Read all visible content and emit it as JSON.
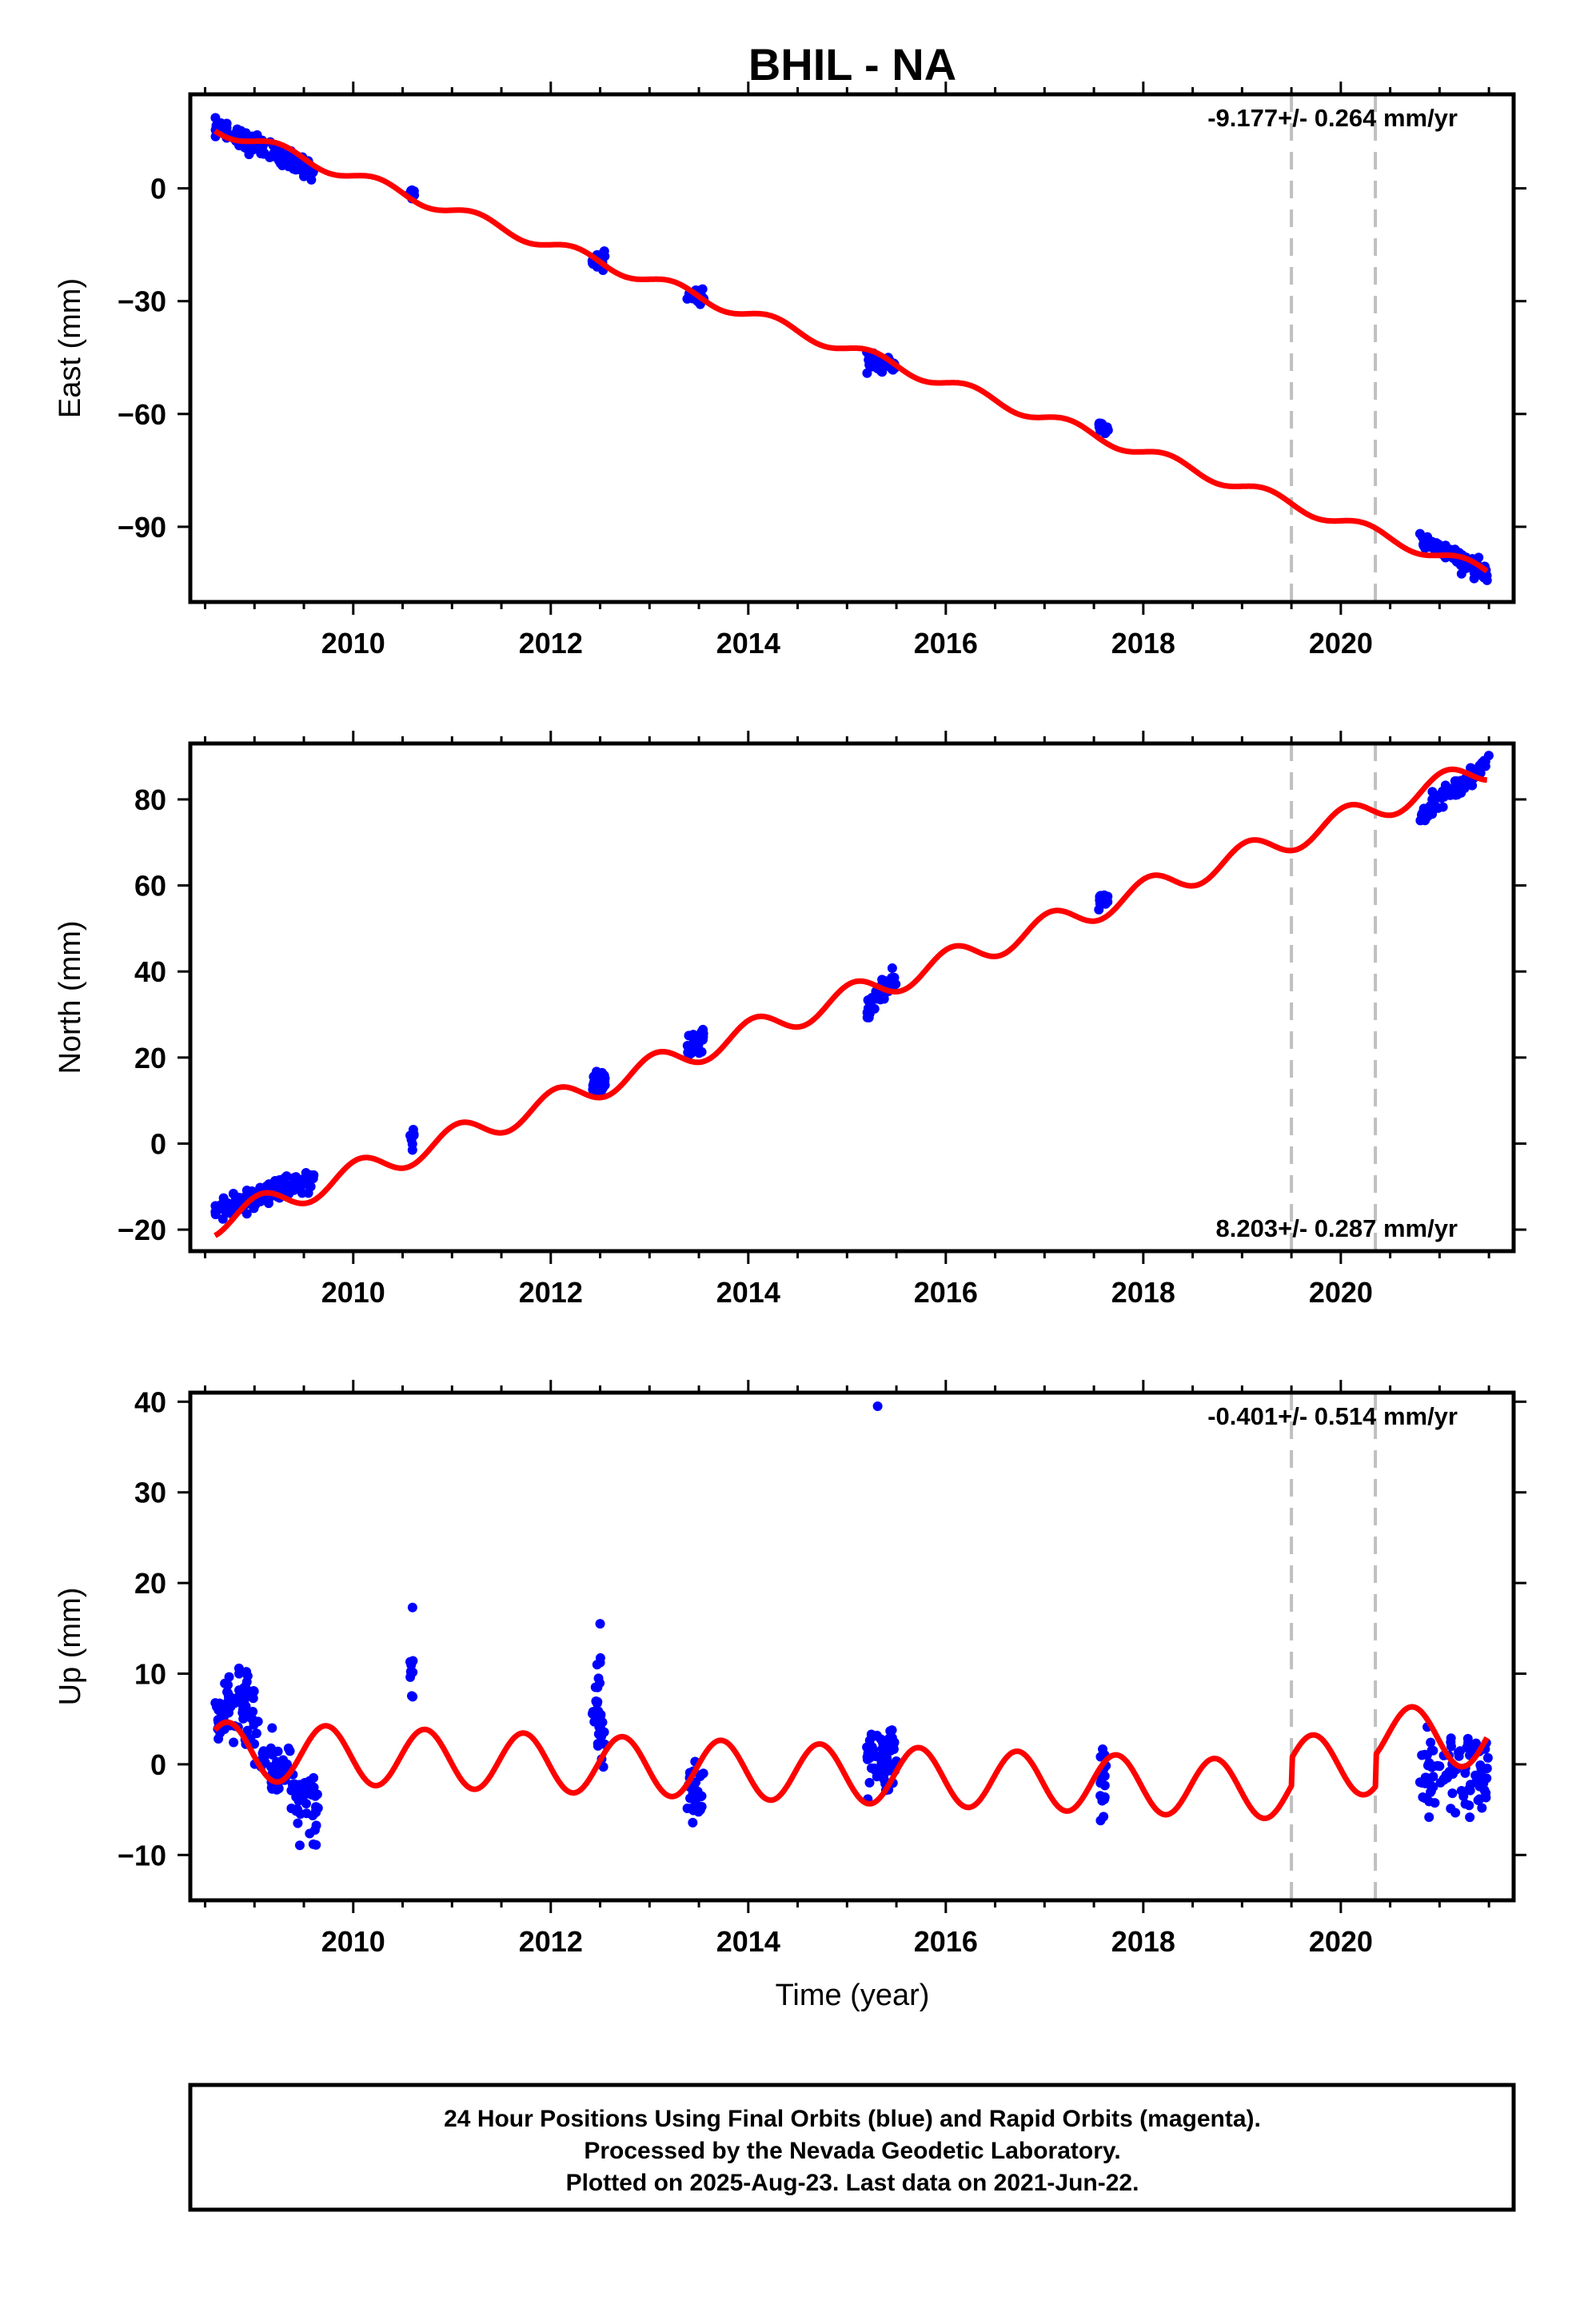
{
  "title": "BHIL - NA",
  "xlabel": "Time (year)",
  "footer": {
    "line1": "24 Hour Positions Using Final Orbits (blue) and Rapid Orbits (magenta).",
    "line2": "Processed by the Nevada Geodetic Laboratory.",
    "line3": "Plotted on 2025-Aug-23. Last data on 2021-Jun-22."
  },
  "chart_data": [
    {
      "type": "scatter",
      "ylabel": "East (mm)",
      "rate_text": "-9.177+/- 0.264 mm/yr",
      "rate_position": "top-right",
      "xlim": [
        2008.35,
        2021.75
      ],
      "ylim": [
        -110,
        25
      ],
      "yticks": [
        0,
        -30,
        -60,
        -90
      ],
      "xticks": [
        2010,
        2012,
        2014,
        2016,
        2018,
        2020
      ],
      "vlines": [
        2019.5,
        2020.35
      ],
      "line_color": "#ff0000",
      "point_color": "#0000ff",
      "model": {
        "slope": -9.177,
        "offset": 16.2,
        "t0": 2008.6,
        "annual_amp": 1.6,
        "annual_phase": 0.0,
        "steps": [
          {
            "t": 2019.5,
            "dy": 0
          },
          {
            "t": 2020.35,
            "dy": 0
          }
        ]
      },
      "data_clusters": [
        {
          "x_range": [
            2008.6,
            2009.6
          ],
          "y_start": 16,
          "y_end": 5,
          "n": 140,
          "spread": 2.2
        },
        {
          "x_range": [
            2010.57,
            2010.62
          ],
          "y_start": -1,
          "y_end": -1,
          "n": 8,
          "spread": 1.5
        },
        {
          "x_range": [
            2012.42,
            2012.55
          ],
          "y_start": -19,
          "y_end": -19,
          "n": 30,
          "spread": 2.0
        },
        {
          "x_range": [
            2013.38,
            2013.55
          ],
          "y_start": -28,
          "y_end": -29.5,
          "n": 30,
          "spread": 1.5
        },
        {
          "x_range": [
            2015.2,
            2015.5
          ],
          "y_start": -46,
          "y_end": -47,
          "n": 60,
          "spread": 1.5
        },
        {
          "x_range": [
            2017.55,
            2017.65
          ],
          "y_start": -63,
          "y_end": -65,
          "n": 18,
          "spread": 1.5
        },
        {
          "x_range": [
            2020.8,
            2021.5
          ],
          "y_start": -93,
          "y_end": -103,
          "n": 90,
          "spread": 2.0
        }
      ]
    },
    {
      "type": "scatter",
      "ylabel": "North (mm)",
      "rate_text": "8.203+/- 0.287 mm/yr",
      "rate_position": "bottom-right",
      "xlim": [
        2008.35,
        2021.75
      ],
      "ylim": [
        -25,
        93
      ],
      "yticks": [
        -20,
        0,
        20,
        40,
        60,
        80
      ],
      "xticks": [
        2010,
        2012,
        2014,
        2016,
        2018,
        2020
      ],
      "vlines": [
        2019.5,
        2020.35
      ],
      "line_color": "#ff0000",
      "point_color": "#0000ff",
      "model": {
        "slope": 8.203,
        "offset": -18.5,
        "t0": 2008.6,
        "annual_amp": 3.0,
        "annual_phase": 1.2,
        "steps": [
          {
            "t": 2019.5,
            "dy": 0
          },
          {
            "t": 2020.35,
            "dy": 0
          }
        ]
      },
      "data_clusters": [
        {
          "x_range": [
            2008.6,
            2009.6
          ],
          "y_start": -16,
          "y_end": -8,
          "n": 140,
          "spread": 2.0
        },
        {
          "x_range": [
            2010.57,
            2010.62
          ],
          "y_start": 1,
          "y_end": 2,
          "n": 8,
          "spread": 1.8
        },
        {
          "x_range": [
            2012.42,
            2012.55
          ],
          "y_start": 13,
          "y_end": 15,
          "n": 30,
          "spread": 2.5
        },
        {
          "x_range": [
            2013.38,
            2013.55
          ],
          "y_start": 21,
          "y_end": 25,
          "n": 30,
          "spread": 2.0
        },
        {
          "x_range": [
            2015.2,
            2015.5
          ],
          "y_start": 31,
          "y_end": 39,
          "n": 60,
          "spread": 2.0
        },
        {
          "x_range": [
            2017.55,
            2017.65
          ],
          "y_start": 56,
          "y_end": 57,
          "n": 18,
          "spread": 1.5
        },
        {
          "x_range": [
            2020.8,
            2021.5
          ],
          "y_start": 76,
          "y_end": 89,
          "n": 90,
          "spread": 1.8
        }
      ]
    },
    {
      "type": "scatter",
      "ylabel": "Up (mm)",
      "rate_text": "-0.401+/- 0.514 mm/yr",
      "rate_position": "top-right",
      "xlim": [
        2008.35,
        2021.75
      ],
      "ylim": [
        -15,
        41
      ],
      "yticks": [
        -10,
        0,
        10,
        20,
        30,
        40
      ],
      "xticks": [
        2010,
        2012,
        2014,
        2016,
        2018,
        2020
      ],
      "vlines": [
        2019.5,
        2020.35
      ],
      "line_color": "#ff0000",
      "point_color": "#0000ff",
      "model": {
        "slope": -0.401,
        "offset": 1.5,
        "t0": 2008.6,
        "annual_amp": 3.2,
        "annual_phase": 3.3,
        "steps": [
          {
            "t": 2019.5,
            "dy": 3.0
          },
          {
            "t": 2020.35,
            "dy": 3.5
          }
        ]
      },
      "data_clusters": [
        {
          "x_range": [
            2008.6,
            2009.0
          ],
          "y_start": 6,
          "y_end": 6,
          "n": 80,
          "spread": 3.0
        },
        {
          "x_range": [
            2009.0,
            2009.65
          ],
          "y_start": 2,
          "y_end": -5,
          "n": 90,
          "spread": 3.5
        },
        {
          "x_range": [
            2010.57,
            2010.62
          ],
          "y_start": 9,
          "y_end": 9,
          "n": 8,
          "spread": 4.0
        },
        {
          "x_range": [
            2012.42,
            2012.55
          ],
          "y_start": 6,
          "y_end": 6,
          "n": 30,
          "spread": 4.0
        },
        {
          "x_range": [
            2013.38,
            2013.55
          ],
          "y_start": -3,
          "y_end": -3,
          "n": 30,
          "spread": 3.0
        },
        {
          "x_range": [
            2015.2,
            2015.5
          ],
          "y_start": 0,
          "y_end": 0,
          "n": 60,
          "spread": 3.5
        },
        {
          "x_range": [
            2017.55,
            2017.65
          ],
          "y_start": -3,
          "y_end": -3,
          "n": 18,
          "spread": 3.5
        },
        {
          "x_range": [
            2020.8,
            2021.5
          ],
          "y_start": -1,
          "y_end": -1,
          "n": 90,
          "spread": 4.0
        }
      ],
      "outliers": [
        {
          "x": 2015.31,
          "y": 39.5
        },
        {
          "x": 2010.6,
          "y": 17.3
        },
        {
          "x": 2012.5,
          "y": 15.5
        }
      ]
    }
  ]
}
